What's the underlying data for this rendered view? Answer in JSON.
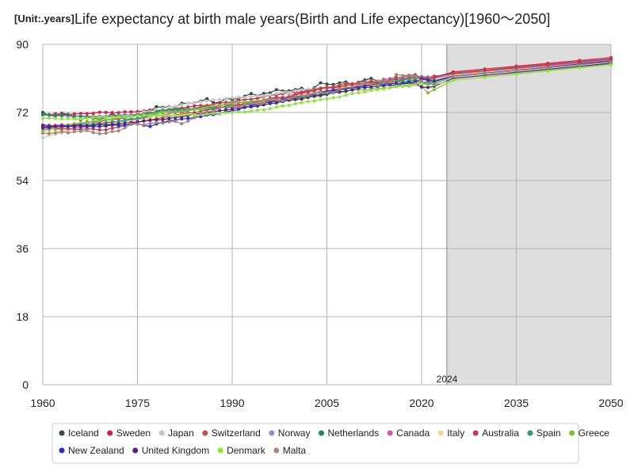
{
  "chart_data": {
    "type": "line",
    "title": "Life expectancy at birth male years(Birth and Life expectancy)[1960～2050]",
    "unit_label": "[Unit:.years]",
    "forecast_marker_label": "2024",
    "forecast_start": 2024,
    "xlim": [
      1960,
      2050
    ],
    "ylim": [
      0,
      90
    ],
    "x_ticks": [
      1960,
      1975,
      1990,
      2005,
      2020,
      2035,
      2050
    ],
    "y_ticks": [
      0,
      18,
      36,
      54,
      72,
      90
    ],
    "x_tick_labels": [
      "1960",
      "1975",
      "1990",
      "2005",
      "2020",
      "2035",
      "2050"
    ],
    "y_tick_labels": [
      "0",
      "18",
      "36",
      "54",
      "72",
      "90"
    ],
    "legend_position": "bottom",
    "series": [
      {
        "name": "Iceland",
        "color": "#3a4a44",
        "anchors": [
          [
            1960,
            72.0
          ],
          [
            1965,
            70.5
          ],
          [
            1970,
            70.7
          ],
          [
            1975,
            71.5
          ],
          [
            1980,
            73.5
          ],
          [
            1985,
            75.0
          ],
          [
            1990,
            75.5
          ],
          [
            1995,
            77.0
          ],
          [
            2000,
            78.0
          ],
          [
            2005,
            79.5
          ],
          [
            2010,
            80.0
          ],
          [
            2015,
            80.7
          ],
          [
            2019,
            81.7
          ],
          [
            2020,
            81.0
          ],
          [
            2022,
            81.0
          ],
          [
            2025,
            82.0
          ],
          [
            2050,
            86.0
          ]
        ],
        "jitter": 0.9
      },
      {
        "name": "Sweden",
        "color": "#d41f4a",
        "anchors": [
          [
            1960,
            71.3
          ],
          [
            1965,
            71.6
          ],
          [
            1970,
            72.0
          ],
          [
            1975,
            72.2
          ],
          [
            1980,
            72.8
          ],
          [
            1985,
            73.8
          ],
          [
            1990,
            74.8
          ],
          [
            1995,
            76.2
          ],
          [
            2000,
            77.4
          ],
          [
            2005,
            78.5
          ],
          [
            2010,
            79.5
          ],
          [
            2015,
            80.4
          ],
          [
            2019,
            81.3
          ],
          [
            2020,
            80.7
          ],
          [
            2022,
            81.3
          ],
          [
            2025,
            82.7
          ],
          [
            2050,
            86.5
          ]
        ],
        "jitter": 0.2
      },
      {
        "name": "Japan",
        "color": "#c4c8c4",
        "anchors": [
          [
            1960,
            65.3
          ],
          [
            1965,
            67.7
          ],
          [
            1970,
            69.3
          ],
          [
            1975,
            71.7
          ],
          [
            1980,
            73.4
          ],
          [
            1985,
            74.8
          ],
          [
            1990,
            75.9
          ],
          [
            1995,
            76.4
          ],
          [
            2000,
            77.7
          ],
          [
            2005,
            78.6
          ],
          [
            2010,
            79.6
          ],
          [
            2015,
            80.8
          ],
          [
            2019,
            81.4
          ],
          [
            2020,
            81.6
          ],
          [
            2022,
            81.1
          ],
          [
            2025,
            82.0
          ],
          [
            2050,
            86.2
          ]
        ],
        "jitter": 0.2
      },
      {
        "name": "Switzerland",
        "color": "#c25050",
        "anchors": [
          [
            1960,
            68.7
          ],
          [
            1965,
            68.7
          ],
          [
            1970,
            70.0
          ],
          [
            1975,
            71.0
          ],
          [
            1980,
            72.3
          ],
          [
            1985,
            73.5
          ],
          [
            1990,
            74.0
          ],
          [
            1995,
            75.3
          ],
          [
            2000,
            76.9
          ],
          [
            2005,
            78.7
          ],
          [
            2010,
            79.9
          ],
          [
            2015,
            80.9
          ],
          [
            2019,
            82.0
          ],
          [
            2020,
            81.1
          ],
          [
            2022,
            81.6
          ],
          [
            2025,
            82.2
          ],
          [
            2050,
            86.0
          ]
        ],
        "jitter": 0.3
      },
      {
        "name": "Norway",
        "color": "#9a88c4",
        "anchors": [
          [
            1960,
            71.3
          ],
          [
            1965,
            71.0
          ],
          [
            1970,
            71.0
          ],
          [
            1975,
            71.5
          ],
          [
            1980,
            72.3
          ],
          [
            1985,
            72.8
          ],
          [
            1990,
            73.4
          ],
          [
            1995,
            74.8
          ],
          [
            2000,
            76.0
          ],
          [
            2005,
            77.7
          ],
          [
            2010,
            78.9
          ],
          [
            2015,
            80.5
          ],
          [
            2019,
            81.5
          ],
          [
            2020,
            81.5
          ],
          [
            2022,
            81.0
          ],
          [
            2025,
            82.0
          ],
          [
            2050,
            85.8
          ]
        ],
        "jitter": 0.2
      },
      {
        "name": "Netherlands",
        "color": "#1f8a54",
        "anchors": [
          [
            1960,
            71.5
          ],
          [
            1965,
            71.1
          ],
          [
            1970,
            70.7
          ],
          [
            1975,
            71.3
          ],
          [
            1980,
            72.6
          ],
          [
            1985,
            73.1
          ],
          [
            1990,
            73.8
          ],
          [
            1995,
            74.6
          ],
          [
            2000,
            75.5
          ],
          [
            2005,
            77.2
          ],
          [
            2010,
            78.9
          ],
          [
            2015,
            79.9
          ],
          [
            2019,
            80.6
          ],
          [
            2020,
            79.7
          ],
          [
            2022,
            80.0
          ],
          [
            2025,
            81.7
          ],
          [
            2050,
            85.5
          ]
        ],
        "jitter": 0.2
      },
      {
        "name": "Canada",
        "color": "#d455b4",
        "anchors": [
          [
            1960,
            68.2
          ],
          [
            1965,
            68.8
          ],
          [
            1970,
            69.3
          ],
          [
            1975,
            70.2
          ],
          [
            1980,
            71.7
          ],
          [
            1985,
            73.0
          ],
          [
            1990,
            74.4
          ],
          [
            1995,
            75.1
          ],
          [
            2000,
            76.3
          ],
          [
            2005,
            77.6
          ],
          [
            2010,
            78.9
          ],
          [
            2015,
            79.6
          ],
          [
            2019,
            80.0
          ],
          [
            2020,
            79.5
          ],
          [
            2022,
            79.5
          ],
          [
            2025,
            81.5
          ],
          [
            2050,
            85.4
          ]
        ],
        "jitter": 0.15
      },
      {
        "name": "Italy",
        "color": "#f5d78c",
        "anchors": [
          [
            1960,
            67.0
          ],
          [
            1965,
            67.6
          ],
          [
            1970,
            68.9
          ],
          [
            1975,
            70.0
          ],
          [
            1980,
            70.6
          ],
          [
            1985,
            72.3
          ],
          [
            1990,
            73.6
          ],
          [
            1995,
            74.9
          ],
          [
            2000,
            76.6
          ],
          [
            2005,
            78.1
          ],
          [
            2010,
            79.5
          ],
          [
            2015,
            80.3
          ],
          [
            2019,
            81.1
          ],
          [
            2020,
            79.7
          ],
          [
            2022,
            80.5
          ],
          [
            2025,
            81.8
          ],
          [
            2050,
            85.6
          ]
        ],
        "jitter": 0.2
      },
      {
        "name": "Australia",
        "color": "#c43a4e",
        "anchors": [
          [
            1960,
            67.9
          ],
          [
            1965,
            67.6
          ],
          [
            1970,
            67.4
          ],
          [
            1975,
            69.4
          ],
          [
            1980,
            71.0
          ],
          [
            1985,
            72.3
          ],
          [
            1990,
            73.9
          ],
          [
            1995,
            75.0
          ],
          [
            2000,
            76.6
          ],
          [
            2005,
            78.5
          ],
          [
            2010,
            79.5
          ],
          [
            2015,
            80.4
          ],
          [
            2019,
            81.3
          ],
          [
            2020,
            81.2
          ],
          [
            2022,
            81.2
          ],
          [
            2025,
            82.4
          ],
          [
            2050,
            86.2
          ]
        ],
        "jitter": 0.2
      },
      {
        "name": "Spain",
        "color": "#2f9a7c",
        "anchors": [
          [
            1960,
            67.4
          ],
          [
            1965,
            68.6
          ],
          [
            1970,
            69.2
          ],
          [
            1975,
            70.4
          ],
          [
            1980,
            72.5
          ],
          [
            1985,
            73.1
          ],
          [
            1990,
            73.4
          ],
          [
            1995,
            74.5
          ],
          [
            2000,
            75.8
          ],
          [
            2005,
            77.0
          ],
          [
            2010,
            78.9
          ],
          [
            2015,
            80.1
          ],
          [
            2019,
            80.9
          ],
          [
            2020,
            79.6
          ],
          [
            2022,
            80.4
          ],
          [
            2025,
            81.6
          ],
          [
            2050,
            85.5
          ]
        ],
        "jitter": 0.2
      },
      {
        "name": "Greece",
        "color": "#7fc03a",
        "anchors": [
          [
            1960,
            67.3
          ],
          [
            1965,
            69.0
          ],
          [
            1970,
            70.1
          ],
          [
            1975,
            71.1
          ],
          [
            1980,
            72.2
          ],
          [
            1985,
            72.9
          ],
          [
            1990,
            74.6
          ],
          [
            1995,
            75.1
          ],
          [
            2000,
            75.5
          ],
          [
            2005,
            76.8
          ],
          [
            2010,
            78.0
          ],
          [
            2015,
            78.5
          ],
          [
            2019,
            79.4
          ],
          [
            2020,
            78.8
          ],
          [
            2021,
            77.2
          ],
          [
            2022,
            78.0
          ],
          [
            2025,
            80.5
          ],
          [
            2050,
            84.8
          ]
        ],
        "jitter": 0.2
      },
      {
        "name": "New Zealand",
        "color": "#2a2ec4",
        "anchors": [
          [
            1960,
            68.5
          ],
          [
            1965,
            68.2
          ],
          [
            1970,
            68.4
          ],
          [
            1975,
            69.0
          ],
          [
            1977,
            68.3
          ],
          [
            1980,
            69.8
          ],
          [
            1985,
            70.9
          ],
          [
            1990,
            72.4
          ],
          [
            1995,
            74.5
          ],
          [
            2000,
            76.0
          ],
          [
            2005,
            77.6
          ],
          [
            2010,
            78.8
          ],
          [
            2015,
            79.6
          ],
          [
            2019,
            80.1
          ],
          [
            2020,
            80.8
          ],
          [
            2022,
            80.3
          ],
          [
            2025,
            81.5
          ],
          [
            2050,
            85.6
          ]
        ],
        "jitter": 0.15
      },
      {
        "name": "United Kingdom",
        "color": "#5a1f86",
        "anchors": [
          [
            1960,
            67.9
          ],
          [
            1965,
            68.5
          ],
          [
            1970,
            68.7
          ],
          [
            1975,
            69.5
          ],
          [
            1980,
            70.4
          ],
          [
            1985,
            71.7
          ],
          [
            1990,
            72.9
          ],
          [
            1995,
            74.0
          ],
          [
            2000,
            75.4
          ],
          [
            2005,
            76.8
          ],
          [
            2010,
            78.4
          ],
          [
            2015,
            79.2
          ],
          [
            2019,
            79.7
          ],
          [
            2020,
            78.7
          ],
          [
            2021,
            78.6
          ],
          [
            2022,
            78.9
          ],
          [
            2025,
            81.0
          ],
          [
            2050,
            85.0
          ]
        ],
        "jitter": 0.15
      },
      {
        "name": "Denmark",
        "color": "#8ee83a",
        "anchors": [
          [
            1960,
            70.4
          ],
          [
            1965,
            70.3
          ],
          [
            1970,
            70.7
          ],
          [
            1975,
            71.1
          ],
          [
            1980,
            71.2
          ],
          [
            1985,
            71.5
          ],
          [
            1990,
            72.0
          ],
          [
            1995,
            72.7
          ],
          [
            2000,
            74.3
          ],
          [
            2005,
            75.6
          ],
          [
            2010,
            77.2
          ],
          [
            2015,
            78.6
          ],
          [
            2019,
            79.5
          ],
          [
            2020,
            79.6
          ],
          [
            2022,
            79.3
          ],
          [
            2025,
            80.5
          ],
          [
            2050,
            84.6
          ]
        ],
        "jitter": 0.15
      },
      {
        "name": "Malta",
        "color": "#a08878",
        "anchors": [
          [
            1960,
            66.5
          ],
          [
            1965,
            66.9
          ],
          [
            1970,
            66.5
          ],
          [
            1975,
            68.9
          ],
          [
            1980,
            69.5
          ],
          [
            1982,
            69.0
          ],
          [
            1985,
            71.8
          ],
          [
            1990,
            73.8
          ],
          [
            1995,
            74.6
          ],
          [
            2000,
            76.2
          ],
          [
            2005,
            77.2
          ],
          [
            2010,
            79.2
          ],
          [
            2015,
            80.0
          ],
          [
            2016,
            82.0
          ],
          [
            2019,
            81.5
          ],
          [
            2020,
            80.3
          ],
          [
            2022,
            79.5
          ],
          [
            2025,
            81.5
          ],
          [
            2050,
            85.4
          ]
        ],
        "jitter": 0.5
      }
    ]
  }
}
